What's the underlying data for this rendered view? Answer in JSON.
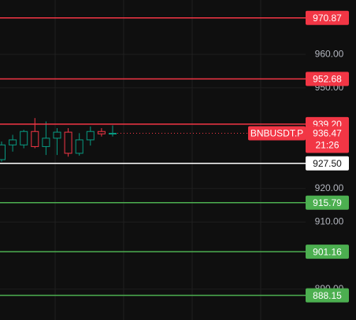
{
  "chart_data": {
    "type": "candlestick",
    "symbol": "BNBUSDT.P",
    "last_price": 936.47,
    "countdown": "21:26",
    "up_color": "#089981",
    "down_color": "#f23645",
    "ylim": [
      880.8,
      976.2
    ],
    "yticks": [
      {
        "value": 960,
        "label": "960.00"
      },
      {
        "value": 950,
        "label": "950.00"
      },
      {
        "value": 920,
        "label": "920.00"
      },
      {
        "value": 910,
        "label": "910.00"
      },
      {
        "value": 890,
        "label": "890.00"
      }
    ],
    "grid": true,
    "candles": [
      {
        "open": 928.6,
        "high": 934,
        "low": 928,
        "close": 933
      },
      {
        "open": 933,
        "high": 936,
        "low": 931,
        "close": 934.5
      },
      {
        "open": 933,
        "high": 937.5,
        "low": 932,
        "close": 937
      },
      {
        "open": 937,
        "high": 941,
        "low": 932,
        "close": 932.5
      },
      {
        "open": 932.5,
        "high": 940,
        "low": 930,
        "close": 935
      },
      {
        "open": 935,
        "high": 938,
        "low": 930,
        "close": 936.8
      },
      {
        "open": 936.8,
        "high": 938,
        "low": 929.5,
        "close": 930.5
      },
      {
        "open": 930.5,
        "high": 936.5,
        "low": 929.8,
        "close": 934.5
      },
      {
        "open": 934.5,
        "high": 938.5,
        "low": 932.8,
        "close": 937
      },
      {
        "open": 937,
        "high": 938,
        "low": 935.5,
        "close": 936.3
      },
      {
        "open": 936.3,
        "high": 938.8,
        "low": 935.5,
        "close": 936.47
      }
    ],
    "price_lines": [
      {
        "value": 970.87,
        "label": "970.87",
        "color": "#f23645"
      },
      {
        "value": 952.68,
        "label": "952.68",
        "color": "#f23645"
      },
      {
        "value": 939.2,
        "label": "939.20",
        "color": "#f23645"
      },
      {
        "value": 927.5,
        "label": "927.50",
        "color": "#ffffff"
      },
      {
        "value": 915.79,
        "label": "915.79",
        "color": "#4caf50"
      },
      {
        "value": 901.16,
        "label": "901.16",
        "color": "#4caf50"
      },
      {
        "value": 888.15,
        "label": "888.15",
        "color": "#4caf50"
      }
    ]
  }
}
